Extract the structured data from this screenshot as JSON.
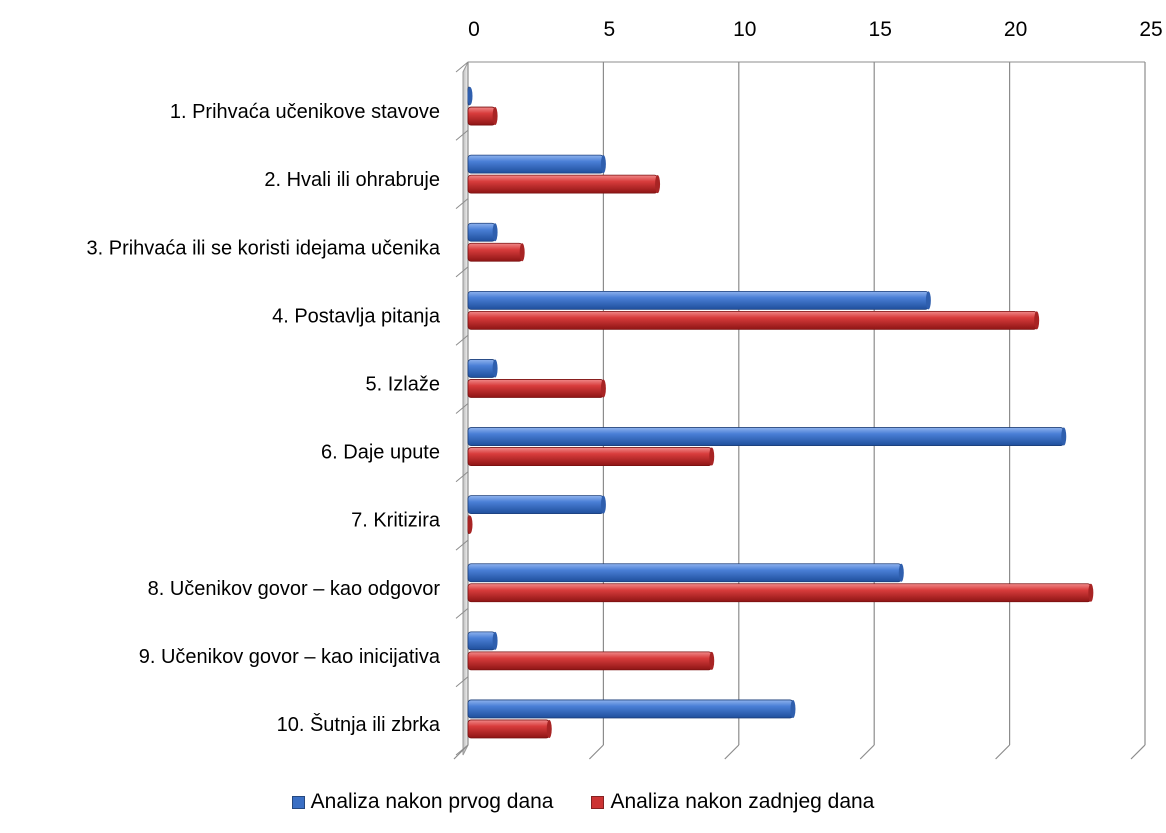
{
  "chart_data": {
    "type": "bar",
    "orientation": "horizontal",
    "categories": [
      "1. Prihvaća učenikove stavove",
      "2. Hvali ili ohrabruje",
      "3. Prihvaća ili se koristi idejama učenika",
      "4. Postavlja pitanja",
      "5. Izlaže",
      "6. Daje upute",
      "7. Kritizira",
      "8. Učenikov govor – kao odgovor",
      "9. Učenikov govor – kao inicijativa",
      "10. Šutnja ili zbrka"
    ],
    "series": [
      {
        "name": "Analiza nakon prvog dana",
        "color": "#3a6fc4",
        "values": [
          0,
          5,
          1,
          17,
          1,
          22,
          5,
          16,
          1,
          12
        ]
      },
      {
        "name": "Analiza nakon zadnjeg dana",
        "color": "#cc3333",
        "values": [
          1,
          7,
          2,
          21,
          5,
          9,
          0,
          23,
          9,
          3
        ]
      }
    ],
    "xlim": [
      0,
      25
    ],
    "xticks": [
      "0",
      "5",
      "10",
      "15",
      "20",
      "25"
    ],
    "x_axis_position": "top",
    "grid": true,
    "legend_position": "bottom",
    "style": "3d"
  }
}
